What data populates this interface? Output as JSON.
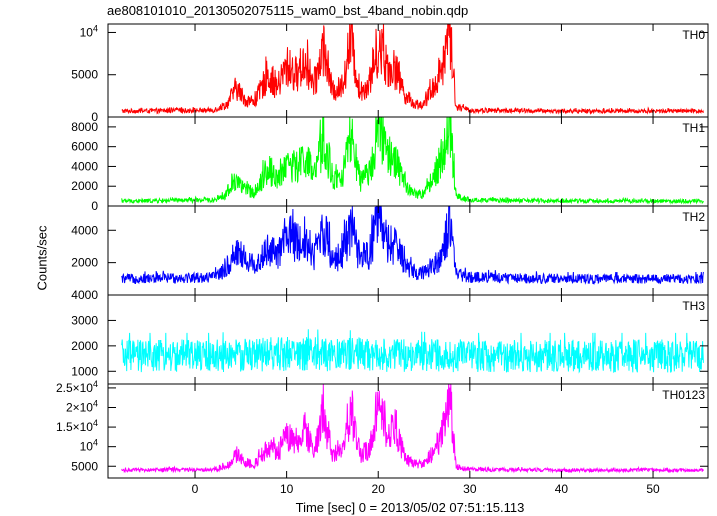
{
  "title": "ae808101010_20130502075115_wam0_bst_4band_nobin.qdp",
  "ylabel": "Counts/sec",
  "xlabel": "Time [sec] 0 = 2013/05/02 07:51:15.113",
  "chart_data": [
    {
      "type": "line",
      "name": "TH0",
      "color": "#ff0000",
      "xlim": [
        -9.5,
        56
      ],
      "ylim": [
        0,
        11000
      ],
      "y_ticks": [
        {
          "value": 0,
          "label": "0"
        },
        {
          "value": 5000,
          "label": "5000"
        },
        {
          "value": 10000,
          "label": "10",
          "sup": "4"
        }
      ],
      "baseline": 700,
      "noise": 250,
      "x": [
        -8,
        2,
        3.5,
        4.5,
        5.5,
        6.5,
        8,
        9,
        10,
        11,
        12,
        13,
        14,
        15,
        16,
        17,
        18,
        19,
        20,
        21,
        22,
        23,
        24,
        25,
        26,
        27,
        27.8,
        28.5,
        30,
        40,
        55.5
      ],
      "y": [
        700,
        800,
        1500,
        3500,
        2000,
        1800,
        5000,
        3500,
        6000,
        5000,
        6500,
        3500,
        8500,
        3000,
        3500,
        9000,
        3000,
        4000,
        8500,
        6000,
        5500,
        2500,
        1500,
        1500,
        3500,
        6000,
        11000,
        1200,
        800,
        700,
        700
      ]
    },
    {
      "type": "line",
      "name": "TH1",
      "color": "#00ff00",
      "xlim": [
        -9.5,
        56
      ],
      "ylim": [
        0,
        9000
      ],
      "y_ticks": [
        {
          "value": 0,
          "label": "0"
        },
        {
          "value": 2000,
          "label": "2000"
        },
        {
          "value": 4000,
          "label": "4000"
        },
        {
          "value": 6000,
          "label": "6000"
        },
        {
          "value": 8000,
          "label": "8000"
        }
      ],
      "baseline": 500,
      "noise": 200,
      "x": [
        -8,
        2,
        3.5,
        4.5,
        5.5,
        6.5,
        8,
        9,
        10,
        11,
        12,
        13,
        14,
        15,
        16,
        17,
        18,
        19,
        20,
        21,
        22,
        23,
        24,
        25,
        26,
        27,
        27.8,
        28.5,
        30,
        40,
        55.5
      ],
      "y": [
        500,
        600,
        1200,
        2800,
        1600,
        1400,
        3800,
        2800,
        4500,
        3800,
        5000,
        3000,
        6500,
        2500,
        2800,
        7000,
        2500,
        3200,
        8500,
        5000,
        4500,
        2000,
        1200,
        1200,
        2800,
        5000,
        8500,
        1000,
        600,
        500,
        500
      ]
    },
    {
      "type": "line",
      "name": "TH2",
      "color": "#0000ff",
      "xlim": [
        -9.5,
        56
      ],
      "ylim": [
        0,
        5500
      ],
      "y_ticks": [
        {
          "value": 2000,
          "label": "2000"
        },
        {
          "value": 4000,
          "label": "4000"
        }
      ],
      "baseline": 1000,
      "noise": 300,
      "x": [
        -8,
        2,
        3.5,
        4.5,
        5.5,
        6.5,
        8,
        9,
        10,
        11,
        12,
        13,
        14,
        15,
        16,
        17,
        18,
        19,
        20,
        21,
        22,
        23,
        24,
        25,
        26,
        27,
        27.8,
        28.5,
        30,
        40,
        55.5
      ],
      "y": [
        1000,
        1100,
        1600,
        2800,
        2200,
        1800,
        2800,
        2400,
        3800,
        3200,
        3500,
        2500,
        4200,
        2300,
        2400,
        4300,
        2200,
        2600,
        4500,
        3200,
        3000,
        1800,
        1400,
        1400,
        1900,
        2500,
        4400,
        1300,
        1100,
        1000,
        1000
      ]
    },
    {
      "type": "line",
      "name": "TH3",
      "color": "#00ffff",
      "xlim": [
        -9.5,
        56
      ],
      "ylim": [
        500,
        4000
      ],
      "y_ticks": [
        {
          "value": 1000,
          "label": "1000"
        },
        {
          "value": 2000,
          "label": "2000"
        },
        {
          "value": 3000,
          "label": "3000"
        },
        {
          "value": 4000,
          "label": "4000"
        }
      ],
      "baseline": 1600,
      "noise": 650,
      "x": [
        -8,
        2,
        10,
        20,
        30,
        40,
        55.5
      ],
      "y": [
        1600,
        1600,
        1700,
        1650,
        1600,
        1600,
        1600
      ]
    },
    {
      "type": "line",
      "name": "TH0123",
      "color": "#ff00ff",
      "xlim": [
        -9.5,
        56
      ],
      "ylim": [
        2000,
        26000
      ],
      "y_ticks": [
        {
          "value": 5000,
          "label": "5000"
        },
        {
          "value": 10000,
          "label": "10",
          "sup": "4"
        },
        {
          "value": 15000,
          "label": "1.5×10",
          "sup": "4"
        },
        {
          "value": 20000,
          "label": "2×10",
          "sup": "4"
        },
        {
          "value": 25000,
          "label": "2.5×10",
          "sup": "4"
        }
      ],
      "baseline": 4000,
      "noise": 450,
      "x": [
        -8,
        2,
        3.5,
        4.5,
        5.5,
        6.5,
        8,
        9,
        10,
        11,
        12,
        13,
        14,
        15,
        16,
        17,
        18,
        19,
        20,
        21,
        22,
        23,
        24,
        25,
        26,
        27,
        27.8,
        28.5,
        30,
        40,
        55.5
      ],
      "y": [
        4000,
        4200,
        5000,
        8000,
        6000,
        5500,
        10000,
        8000,
        13000,
        11000,
        14000,
        8500,
        19000,
        8000,
        8500,
        20000,
        8000,
        9500,
        21000,
        14000,
        13000,
        7000,
        5500,
        5500,
        8500,
        13000,
        24000,
        5000,
        4200,
        4000,
        4000
      ]
    }
  ],
  "x_ticks": [
    {
      "value": 0,
      "label": "0"
    },
    {
      "value": 10,
      "label": "10"
    },
    {
      "value": 20,
      "label": "20"
    },
    {
      "value": 30,
      "label": "30"
    },
    {
      "value": 40,
      "label": "40"
    },
    {
      "value": 50,
      "label": "50"
    }
  ]
}
